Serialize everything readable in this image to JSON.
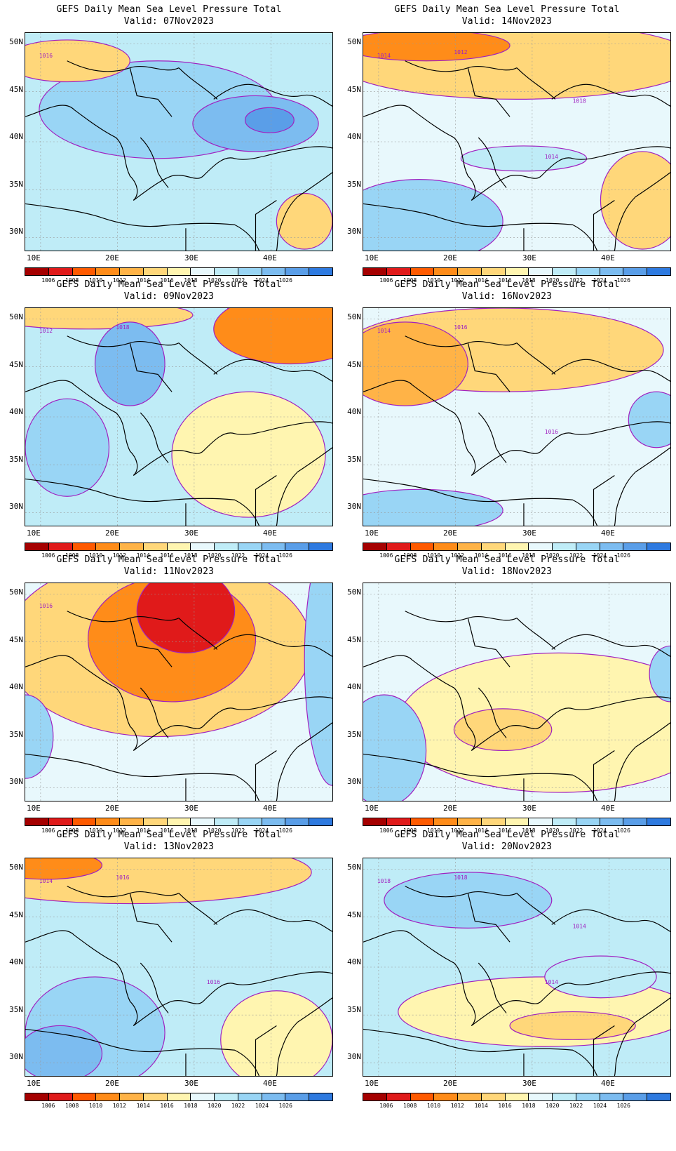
{
  "panels": [
    {
      "title": "GEFS Daily Mean Sea Level Pressure Total",
      "valid": "Valid: 07Nov2023",
      "contour_labels": [
        "1016"
      ]
    },
    {
      "title": "GEFS Daily Mean Sea Level Pressure Total",
      "valid": "Valid: 14Nov2023",
      "contour_labels": [
        "1014",
        "1012",
        "1014",
        "1018"
      ]
    },
    {
      "title": "GEFS Daily Mean Sea Level Pressure Total",
      "valid": "Valid: 09Nov2023",
      "contour_labels": [
        "1012",
        "1018"
      ]
    },
    {
      "title": "GEFS Daily Mean Sea Level Pressure Total",
      "valid": "Valid: 16Nov2023",
      "contour_labels": [
        "1014",
        "1016",
        "1016"
      ]
    },
    {
      "title": "GEFS Daily Mean Sea Level Pressure Total",
      "valid": "Valid: 11Nov2023",
      "contour_labels": [
        "1016"
      ]
    },
    {
      "title": "GEFS Daily Mean Sea Level Pressure Total",
      "valid": "Valid: 18Nov2023",
      "contour_labels": []
    },
    {
      "title": "GEFS Daily Mean Sea Level Pressure Total",
      "valid": "Valid: 13Nov2023",
      "contour_labels": [
        "1014",
        "1016",
        "1016"
      ]
    },
    {
      "title": "GEFS Daily Mean Sea Level Pressure Total",
      "valid": "Valid: 20Nov2023",
      "contour_labels": [
        "1018",
        "1018",
        "1014",
        "1014"
      ]
    }
  ],
  "axes": {
    "lat_labels": [
      "50N",
      "45N",
      "40N",
      "35N",
      "30N"
    ],
    "lon_labels": [
      "10E",
      "20E",
      "30E",
      "40E"
    ]
  },
  "colorbar": {
    "labels": [
      "1006",
      "1008",
      "1010",
      "1012",
      "1014",
      "1016",
      "1018",
      "1020",
      "1022",
      "1024",
      "1026"
    ],
    "colors": [
      "#a50000",
      "#e01a1a",
      "#ff5a00",
      "#ff8c19",
      "#ffb347",
      "#ffd77a",
      "#fff5b0",
      "#e8f8fc",
      "#bfecf7",
      "#99d5f5",
      "#7cbcf0",
      "#5a9ee8",
      "#2e7ae0"
    ]
  }
}
